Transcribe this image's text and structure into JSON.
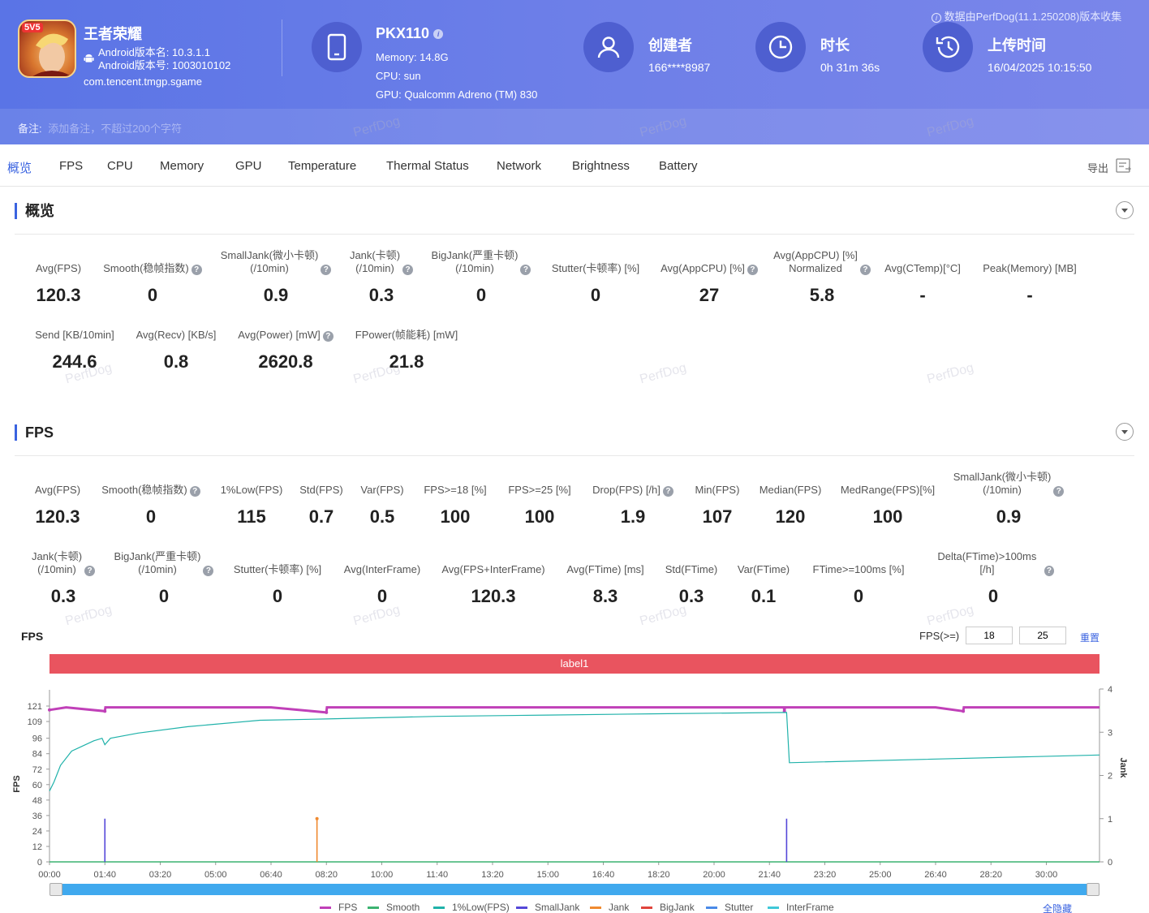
{
  "header": {
    "source_note": "数据由PerfDog(11.1.250208)版本收集",
    "app": {
      "badge": "5V5",
      "name": "王者荣耀",
      "version_name": "Android版本名: 10.3.1.1",
      "version_code": "Android版本号: 1003010102",
      "package": "com.tencent.tmgp.sgame"
    },
    "device": {
      "name": "PKX110",
      "memory": "Memory: 14.8G",
      "cpu": "CPU: sun",
      "gpu": "GPU: Qualcomm Adreno (TM) 830"
    },
    "creator": {
      "label": "创建者",
      "value": "166****8987"
    },
    "duration": {
      "label": "时长",
      "value": "0h 31m 36s"
    },
    "upload": {
      "label": "上传时间",
      "value": "16/04/2025 10:15:50"
    },
    "note": {
      "label": "备注:",
      "placeholder": "添加备注，不超过200个字符"
    },
    "watermark": "PerfDog"
  },
  "tabs": [
    "概览",
    "FPS",
    "CPU",
    "Memory",
    "GPU",
    "Temperature",
    "Thermal Status",
    "Network",
    "Brightness",
    "Battery"
  ],
  "export_label": "导出",
  "overview": {
    "title": "概览",
    "metrics": [
      {
        "label": "Avg(FPS)",
        "value": "120.3"
      },
      {
        "label": "Smooth(稳帧指数)",
        "value": "0"
      },
      {
        "label": "SmallJank(微小卡顿)\n(/10min)",
        "value": "0.9"
      },
      {
        "label": "Jank(卡顿)\n(/10min)",
        "value": "0.3"
      },
      {
        "label": "BigJank(严重卡顿)\n(/10min)",
        "value": "0"
      },
      {
        "label": "Stutter(卡顿率) [%]",
        "value": "0"
      },
      {
        "label": "Avg(AppCPU) [%]",
        "value": "27"
      },
      {
        "label": "Avg(AppCPU) [%]\nNormalized",
        "value": "5.8"
      },
      {
        "label": "Avg(CTemp)[°C]",
        "value": "-"
      },
      {
        "label": "Peak(Memory) [MB]",
        "value": "-"
      },
      {
        "label": "Send [KB/10min]",
        "value": "244.6"
      },
      {
        "label": "Avg(Recv) [KB/s]",
        "value": "0.8"
      },
      {
        "label": "Avg(Power) [mW]",
        "value": "2620.8"
      },
      {
        "label": "FPower(帧能耗) [mW]",
        "value": "21.8"
      }
    ]
  },
  "fps_section": {
    "title": "FPS",
    "metrics": [
      {
        "label": "Avg(FPS)",
        "value": "120.3"
      },
      {
        "label": "Smooth(稳帧指数)",
        "value": "0"
      },
      {
        "label": "1%Low(FPS)",
        "value": "115"
      },
      {
        "label": "Std(FPS)",
        "value": "0.7"
      },
      {
        "label": "Var(FPS)",
        "value": "0.5"
      },
      {
        "label": "FPS>=18 [%]",
        "value": "100"
      },
      {
        "label": "FPS>=25 [%]",
        "value": "100"
      },
      {
        "label": "Drop(FPS) [/h]",
        "value": "1.9"
      },
      {
        "label": "Min(FPS)",
        "value": "107"
      },
      {
        "label": "Median(FPS)",
        "value": "120"
      },
      {
        "label": "MedRange(FPS)[%]",
        "value": "100"
      },
      {
        "label": "SmallJank(微小卡顿)\n(/10min)",
        "value": "0.9"
      },
      {
        "label": "Jank(卡顿)\n(/10min)",
        "value": "0.3"
      },
      {
        "label": "BigJank(严重卡顿)\n(/10min)",
        "value": "0"
      },
      {
        "label": "Stutter(卡顿率) [%]",
        "value": "0"
      },
      {
        "label": "Avg(InterFrame)",
        "value": "0"
      },
      {
        "label": "Avg(FPS+InterFrame)",
        "value": "120.3"
      },
      {
        "label": "Avg(FTime) [ms]",
        "value": "8.3"
      },
      {
        "label": "Std(FTime)",
        "value": "0.3"
      },
      {
        "label": "Var(FTime)",
        "value": "0.1"
      },
      {
        "label": "FTime>=100ms [%]",
        "value": "0"
      },
      {
        "label": "Delta(FTime)>100ms [/h]",
        "value": "0"
      }
    ],
    "chart_title": "FPS",
    "threshold_label": "FPS(>=)",
    "threshold_1": "18",
    "threshold_2": "25",
    "reset_label": "重置",
    "label_bar": "label1",
    "hide_all_label": "全隐藏"
  },
  "chart_data": {
    "type": "line",
    "y_left_label": "FPS",
    "y_right_label": "Jank",
    "y_left_ticks": [
      "0",
      "12",
      "24",
      "36",
      "48",
      "60",
      "72",
      "84",
      "96",
      "109",
      "121"
    ],
    "y_right_ticks": [
      "0",
      "1",
      "2",
      "3",
      "4"
    ],
    "x_ticks": [
      "00:00",
      "01:40",
      "03:20",
      "05:00",
      "06:40",
      "08:20",
      "10:00",
      "11:40",
      "13:20",
      "15:00",
      "16:40",
      "18:20",
      "20:00",
      "21:40",
      "23:20",
      "25:00",
      "26:40",
      "28:20",
      "30:00"
    ],
    "x_range_seconds": [
      0,
      1896
    ],
    "y_left_range": [
      0,
      121
    ],
    "y_right_range": [
      0,
      4
    ],
    "series": [
      {
        "name": "FPS",
        "color": "#c040b8",
        "points": [
          [
            0,
            118
          ],
          [
            30,
            120
          ],
          [
            100,
            117
          ],
          [
            101,
            120
          ],
          [
            400,
            120
          ],
          [
            500,
            116
          ],
          [
            501,
            120
          ],
          [
            600,
            120
          ],
          [
            700,
            120
          ],
          [
            1000,
            120
          ],
          [
            1326,
            120
          ],
          [
            1327,
            117
          ],
          [
            1328,
            120
          ],
          [
            1600,
            120
          ],
          [
            1650,
            117
          ],
          [
            1651,
            120
          ],
          [
            1896,
            120
          ]
        ]
      },
      {
        "name": "Smooth",
        "color": "#3cb371",
        "points": [
          [
            0,
            0
          ],
          [
            1896,
            0
          ]
        ]
      },
      {
        "name": "1%Low(FPS)",
        "color": "#20b2aa",
        "points": [
          [
            0,
            55
          ],
          [
            8,
            62
          ],
          [
            20,
            75
          ],
          [
            40,
            86
          ],
          [
            60,
            90
          ],
          [
            80,
            94
          ],
          [
            95,
            96
          ],
          [
            100,
            91
          ],
          [
            110,
            96
          ],
          [
            160,
            100
          ],
          [
            250,
            105
          ],
          [
            380,
            110
          ],
          [
            500,
            111
          ],
          [
            700,
            113
          ],
          [
            900,
            114
          ],
          [
            1100,
            115
          ],
          [
            1331,
            116
          ],
          [
            1336,
            77
          ],
          [
            1896,
            83
          ]
        ]
      },
      {
        "name": "SmallJank",
        "color": "#5548d8",
        "points": [
          [
            100,
            1
          ],
          [
            1331,
            1
          ]
        ]
      },
      {
        "name": "Jank",
        "color": "#f08a30",
        "points": [
          [
            483,
            1
          ]
        ]
      },
      {
        "name": "BigJank",
        "color": "#e0443c",
        "points": []
      },
      {
        "name": "Stutter",
        "color": "#4a8ae8",
        "points": []
      },
      {
        "name": "InterFrame",
        "color": "#40c8d8",
        "points": []
      }
    ]
  }
}
